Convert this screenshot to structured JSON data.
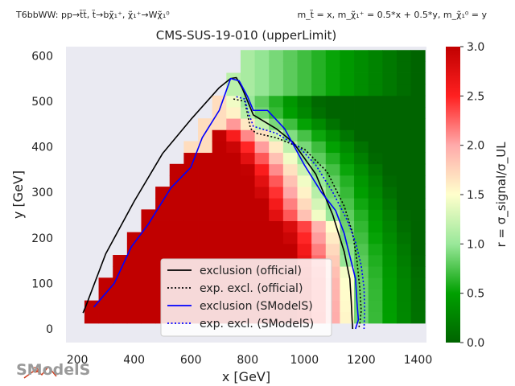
{
  "chart_data": {
    "type": "heatmap",
    "title": "CMS-SUS-19-010 (upperLimit)",
    "header_left": "T6bbWW: pp→t̃t̃, t̃→bχ̃₁⁺, χ̃₁⁺→Wχ̃₁⁰",
    "header_right": "m_t̃ = x, m_χ̃₁⁺ = 0.5*x + 0.5*y, m_χ̃₁⁰ = y",
    "xlabel": "x [GeV]",
    "ylabel": "y [GeV]",
    "xlim": [
      160,
      1430
    ],
    "ylim": [
      -30,
      620
    ],
    "xticks": [
      "200",
      "400",
      "600",
      "800",
      "1000",
      "1200",
      "1400"
    ],
    "xtick_values": [
      200,
      400,
      600,
      800,
      1000,
      1200,
      1400
    ],
    "yticks": [
      "0",
      "100",
      "200",
      "300",
      "400",
      "500",
      "600"
    ],
    "ytick_values": [
      0,
      100,
      200,
      300,
      400,
      500,
      600
    ],
    "colorbar": {
      "label": "r = σ_signal/σ_UL",
      "range": [
        0.0,
        3.0
      ],
      "ticks": [
        "0.0",
        "0.5",
        "1.0",
        "1.5",
        "2.0",
        "2.5",
        "3.0"
      ],
      "tick_values": [
        0,
        0.5,
        1.0,
        1.5,
        2.0,
        2.5,
        3.0
      ],
      "colors": [
        "#006400",
        "#00a000",
        "#9ae89a",
        "#ffffcc",
        "#ffaaaa",
        "#ff2020",
        "#c00000"
      ]
    },
    "grid": {
      "x_bins": [
        250,
        300,
        350,
        400,
        450,
        500,
        550,
        600,
        650,
        700,
        750,
        800,
        850,
        900,
        950,
        1000,
        1050,
        1100,
        1150,
        1200,
        1250,
        1300,
        1350,
        1400
      ],
      "y_bins": [
        25,
        50,
        75,
        100,
        125,
        150,
        175,
        200,
        225,
        250,
        275,
        300,
        325,
        350,
        375,
        400,
        425,
        450,
        475,
        500,
        525,
        550,
        575,
        600
      ],
      "bin_width": 50,
      "bin_height": 25,
      "note": "cell values estimated from color: r ~3 in lower-left, ~1 near the official exclusion contour, falling to ~0 toward high x"
    },
    "series": [
      {
        "name": "exclusion (official)",
        "color": "#000000",
        "style": "solid",
        "x": [
          220,
          230,
          300,
          400,
          500,
          600,
          700,
          740,
          760,
          780,
          820,
          900,
          960,
          1040,
          1100,
          1140,
          1160,
          1165,
          1168,
          1170
        ],
        "y": [
          35,
          50,
          165,
          280,
          385,
          460,
          530,
          550,
          552,
          530,
          470,
          440,
          410,
          340,
          250,
          170,
          110,
          60,
          20,
          0
        ]
      },
      {
        "name": "exp. excl. (official)",
        "color": "#000000",
        "style": "dotted",
        "x": [
          750,
          790,
          800,
          810,
          830,
          900,
          1000,
          1080,
          1140,
          1170,
          1185,
          1195,
          1200,
          1195,
          1190
        ],
        "y": [
          505,
          500,
          470,
          440,
          430,
          420,
          395,
          345,
          270,
          210,
          150,
          90,
          40,
          10,
          0
        ]
      },
      {
        "name": "exclusion (SModelS)",
        "color": "#0000ff",
        "style": "solid",
        "x": [
          258,
          330,
          390,
          450,
          530,
          600,
          640,
          700,
          740,
          770,
          800,
          820,
          870,
          930,
          1000,
          1060,
          1110,
          1140,
          1160,
          1180,
          1185,
          1190,
          1180
        ],
        "y": [
          48,
          100,
          180,
          230,
          310,
          355,
          420,
          480,
          550,
          545,
          510,
          480,
          480,
          440,
          360,
          300,
          260,
          210,
          160,
          110,
          60,
          20,
          0
        ]
      },
      {
        "name": "exp. excl. (SModelS)",
        "color": "#0000ff",
        "style": "dotted",
        "x": [
          760,
          790,
          800,
          820,
          900,
          980,
          1040,
          1100,
          1150,
          1180,
          1200,
          1210,
          1212,
          1210
        ],
        "y": [
          510,
          505,
          480,
          445,
          430,
          400,
          360,
          300,
          240,
          190,
          140,
          90,
          40,
          0
        ]
      }
    ],
    "legend": {
      "placement": "lower-center",
      "entries": [
        "exclusion (official)",
        "exp. excl. (official)",
        "exclusion (SModelS)",
        "exp. excl. (SModelS)"
      ]
    }
  },
  "logo_text": "SModelS"
}
